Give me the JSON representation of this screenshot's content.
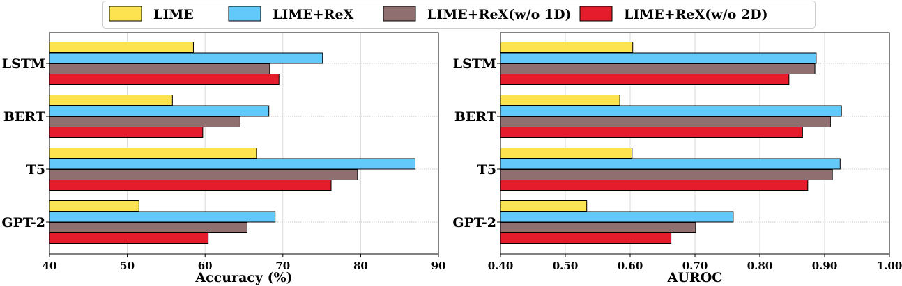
{
  "chart_data": [
    {
      "type": "bar",
      "orientation": "horizontal",
      "title": "",
      "xlabel": "Accuracy (%)",
      "ylabel": "",
      "xlim": [
        40,
        90
      ],
      "xticks": [
        40,
        50,
        60,
        70,
        80,
        90
      ],
      "xtick_labels": [
        "40",
        "50",
        "60",
        "70",
        "80",
        "90"
      ],
      "grid": true,
      "categories": [
        "LSTM",
        "BERT",
        "T5",
        "GPT-2"
      ],
      "series": [
        {
          "name": "LIME",
          "values": [
            58.5,
            55.8,
            66.6,
            51.5
          ]
        },
        {
          "name": "LIME+ReX",
          "values": [
            75.1,
            68.2,
            87.0,
            69.0
          ]
        },
        {
          "name": "LIME+ReX(w/o 1D)",
          "values": [
            68.3,
            64.5,
            79.6,
            65.4
          ]
        },
        {
          "name": "LIME+ReX(w/o 2D)",
          "values": [
            69.5,
            59.7,
            76.2,
            60.4
          ]
        }
      ]
    },
    {
      "type": "bar",
      "orientation": "horizontal",
      "title": "",
      "xlabel": "AUROC",
      "ylabel": "",
      "xlim": [
        0.4,
        1.0
      ],
      "xticks": [
        0.4,
        0.5,
        0.6,
        0.7,
        0.8,
        0.9,
        1.0
      ],
      "xtick_labels": [
        "0.40",
        "0.50",
        "0.60",
        "0.70",
        "0.80",
        "0.90",
        "1.00"
      ],
      "grid": true,
      "categories": [
        "LSTM",
        "BERT",
        "T5",
        "GPT-2"
      ],
      "series": [
        {
          "name": "LIME",
          "values": [
            0.604,
            0.584,
            0.603,
            0.533
          ]
        },
        {
          "name": "LIME+ReX",
          "values": [
            0.887,
            0.926,
            0.924,
            0.759
          ]
        },
        {
          "name": "LIME+ReX(w/o 1D)",
          "values": [
            0.885,
            0.909,
            0.912,
            0.701
          ]
        },
        {
          "name": "LIME+ReX(w/o 2D)",
          "values": [
            0.845,
            0.866,
            0.874,
            0.663
          ]
        }
      ]
    }
  ],
  "legend": {
    "placement": "top-center",
    "entries": [
      {
        "label": "LIME",
        "color": "#fde34f"
      },
      {
        "label": "LIME+ReX",
        "color": "#63c8fa"
      },
      {
        "label": "LIME+ReX(w/o 1D)",
        "color": "#8f6f6f"
      },
      {
        "label": "LIME+ReX(w/o 2D)",
        "color": "#e51c2b"
      }
    ]
  }
}
